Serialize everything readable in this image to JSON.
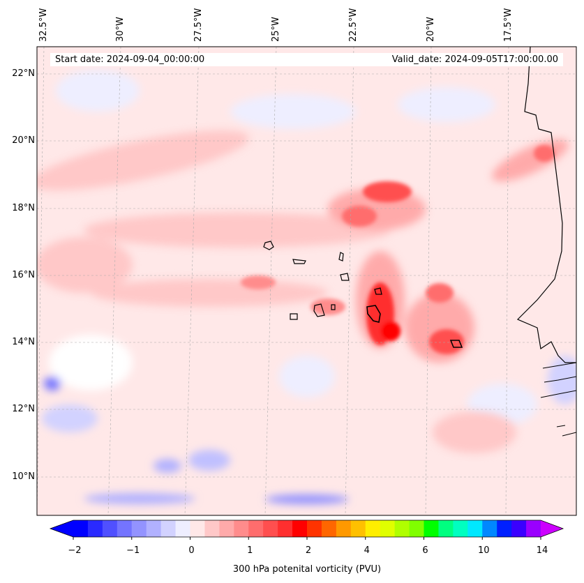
{
  "map": {
    "start_date_text": "Start date: 2024-09-04_00:00:00",
    "valid_date_text": "Valid_date: 2024-09-05T17:00:00.00",
    "lon_labels": [
      "32.5°W",
      "30°W",
      "27.5°W",
      "25°W",
      "22.5°W",
      "20°W",
      "17.5°W"
    ],
    "lat_labels": [
      "22°N",
      "20°N",
      "18°N",
      "16°N",
      "14°N",
      "12°N",
      "10°N"
    ],
    "extent": {
      "lon_min": -32.5,
      "lon_max": -15.0,
      "lat_min": 8.9,
      "lat_max": 22.8
    },
    "background_color": "#ffe8e8"
  },
  "colorbar": {
    "label": "300 hPa potenital vorticity (PVU)",
    "ticks": [
      "−2",
      "−1",
      "0",
      "1",
      "2",
      "4",
      "6",
      "10",
      "14"
    ],
    "colors": [
      "#0000ff",
      "#2a2aff",
      "#5050ff",
      "#7474ff",
      "#9393ff",
      "#b1b1ff",
      "#d2d2ff",
      "#eeeeff",
      "#ffe8e8",
      "#ffc8c8",
      "#ffaaaa",
      "#ff8c8c",
      "#ff6d6d",
      "#ff4f4f",
      "#ff2f2f",
      "#ff0000",
      "#ff3300",
      "#ff6600",
      "#ff9900",
      "#ffc000",
      "#ffee00",
      "#e0ff00",
      "#b0ff00",
      "#80ff00",
      "#00ff00",
      "#00ff80",
      "#00ffc0",
      "#00e8ff",
      "#0088ff",
      "#0020ff",
      "#3a00ff",
      "#9a00ff"
    ],
    "extend_min_color": "#0000ff",
    "extend_max_color": "#cc00ff"
  }
}
